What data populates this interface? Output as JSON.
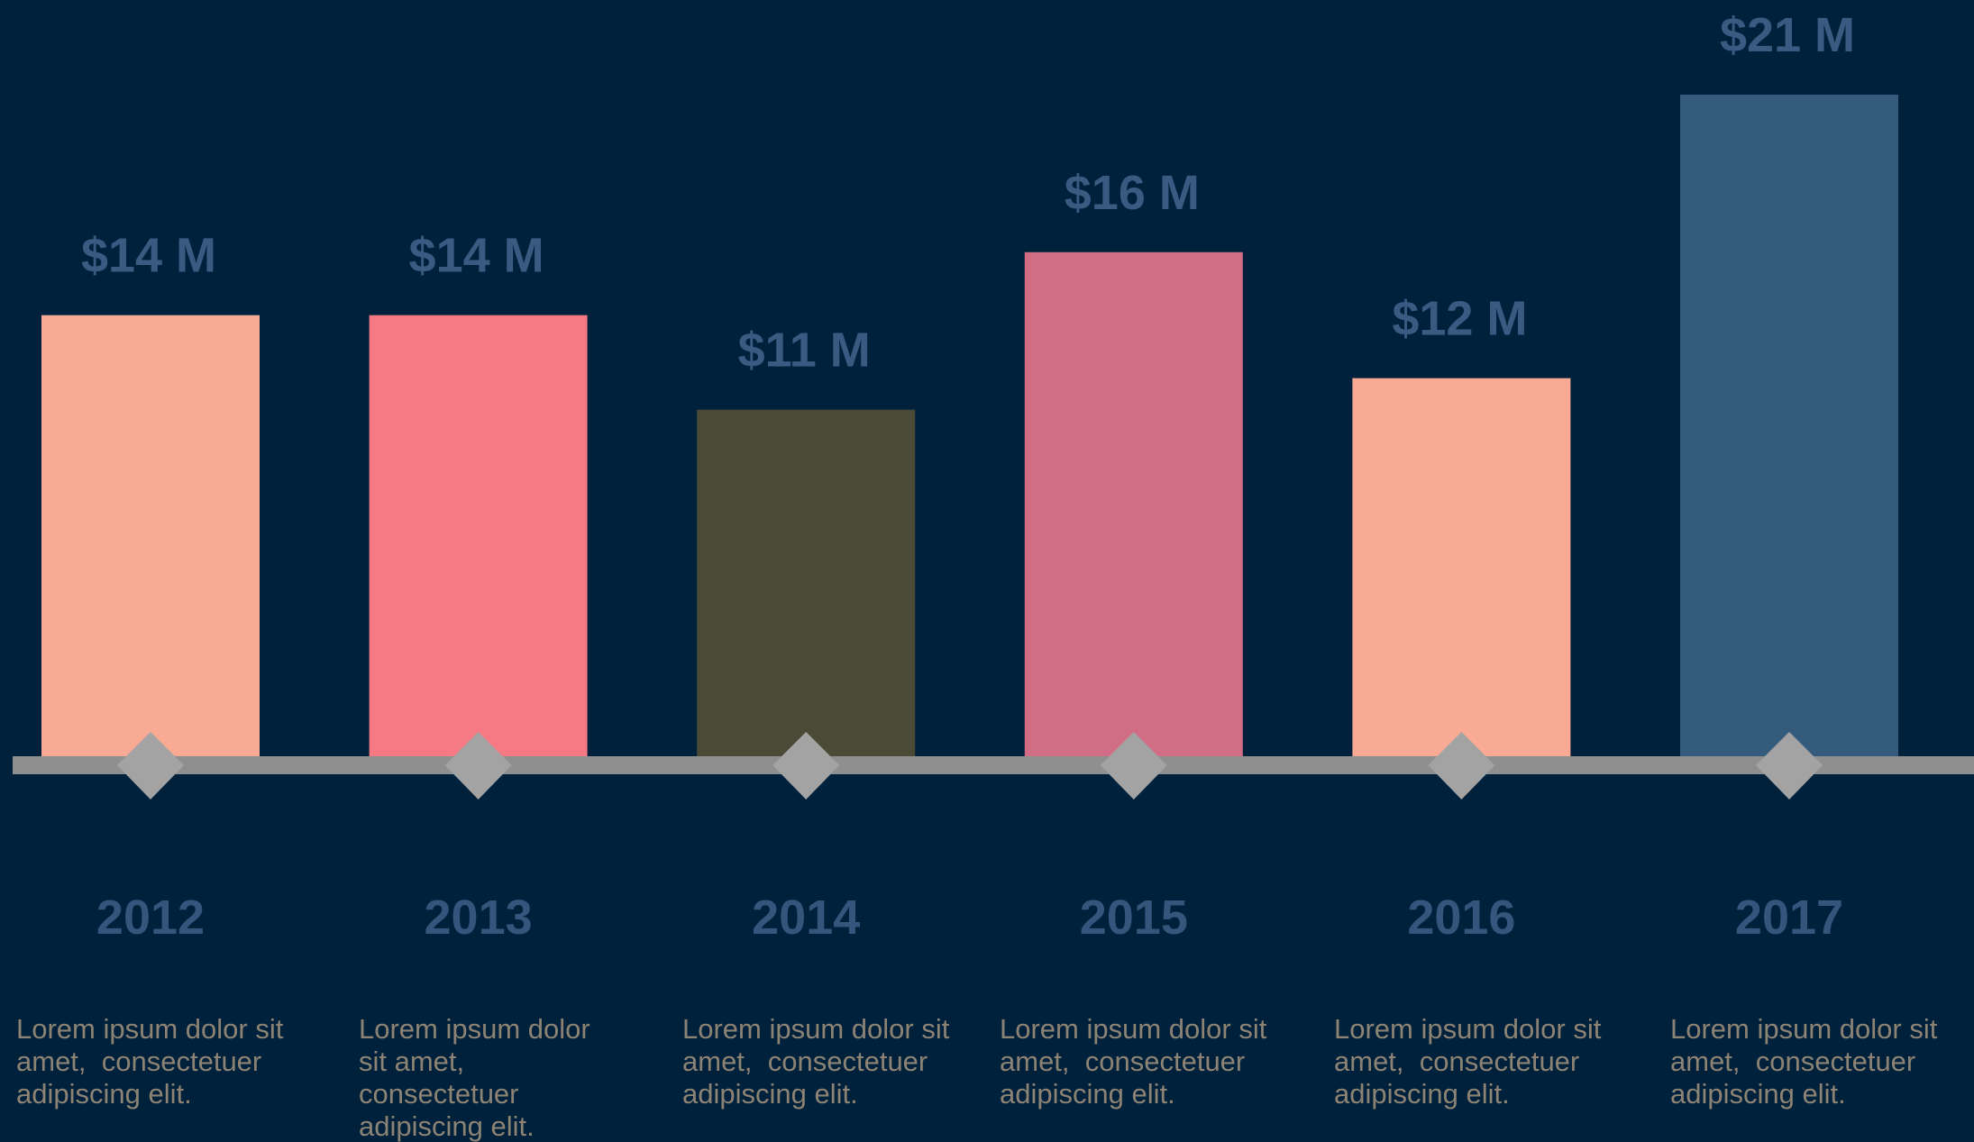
{
  "chart_data": {
    "type": "bar",
    "categories": [
      "2012",
      "2013",
      "2014",
      "2015",
      "2016",
      "2017"
    ],
    "values": [
      14,
      14,
      11,
      16,
      12,
      21
    ],
    "value_labels": [
      "$14 M",
      "$14 M",
      "$11 M",
      "$16 M",
      "$12 M",
      "$21 M"
    ],
    "colors": [
      "#f9aa95",
      "#f67a84",
      "#4a4a36",
      "#d16e86",
      "#f9aa95",
      "#345a7c"
    ],
    "descriptions": [
      "Lorem ipsum dolor sit amet,  consectetuer adipiscing elit.",
      "Lorem ipsum dolor sit amet,  consectetuer adipiscing elit.",
      "Lorem ipsum dolor sit amet,  consectetuer adipiscing elit.",
      "Lorem ipsum dolor sit amet,  consectetuer adipiscing elit.",
      "Lorem ipsum dolor sit amet,  consectetuer adipiscing elit.",
      "Lorem ipsum dolor sit amet,  consectetuer adipiscing elit."
    ]
  }
}
